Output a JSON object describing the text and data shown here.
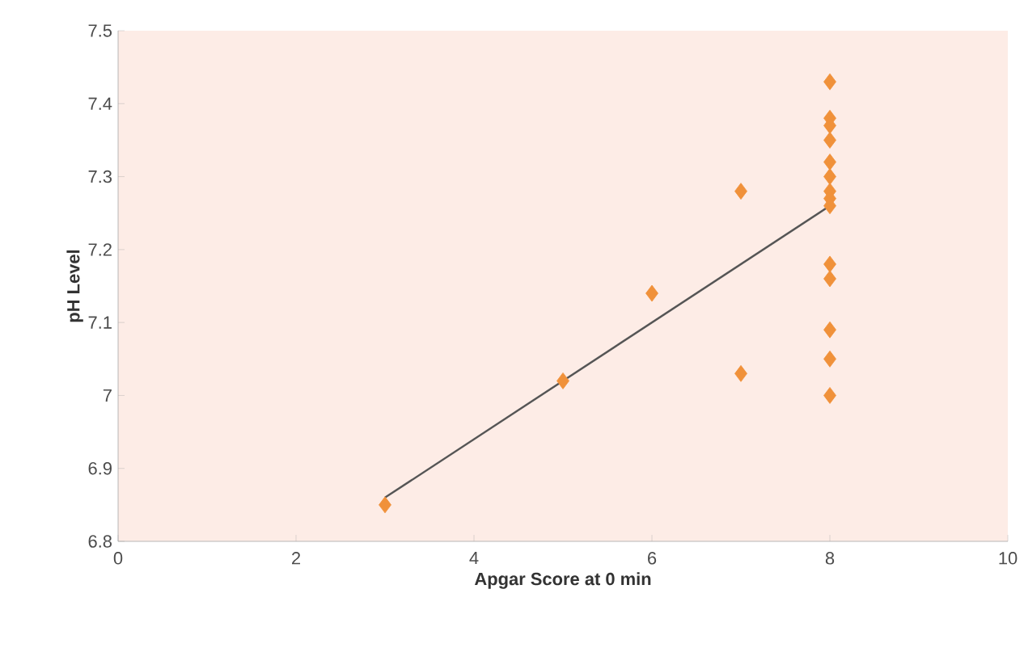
{
  "chart_data": {
    "type": "scatter",
    "xlabel": "Apgar Score at 0 min",
    "ylabel": "pH Level",
    "xlim": [
      0,
      10
    ],
    "ylim": [
      6.8,
      7.5
    ],
    "xticks": [
      0,
      2,
      4,
      6,
      8,
      10
    ],
    "yticks": [
      6.8,
      6.9,
      7,
      7.1,
      7.2,
      7.3,
      7.4,
      7.5
    ],
    "marker": "diamond",
    "grid": false,
    "series": [
      {
        "color": "#f0913a",
        "x": [
          3,
          5,
          6,
          7,
          7,
          8,
          8,
          8,
          8,
          8,
          8,
          8,
          8,
          8,
          8,
          8,
          8,
          8,
          8
        ],
        "values": [
          6.85,
          7.02,
          7.14,
          7.28,
          7.03,
          7.43,
          7.38,
          7.37,
          7.35,
          7.32,
          7.3,
          7.28,
          7.27,
          7.26,
          7.18,
          7.16,
          7.09,
          7.05,
          7.0
        ]
      },
      {
        "type": "line",
        "color": "#555555",
        "x": [
          3,
          8
        ],
        "values": [
          6.86,
          7.26
        ],
        "marker": "none"
      }
    ]
  }
}
